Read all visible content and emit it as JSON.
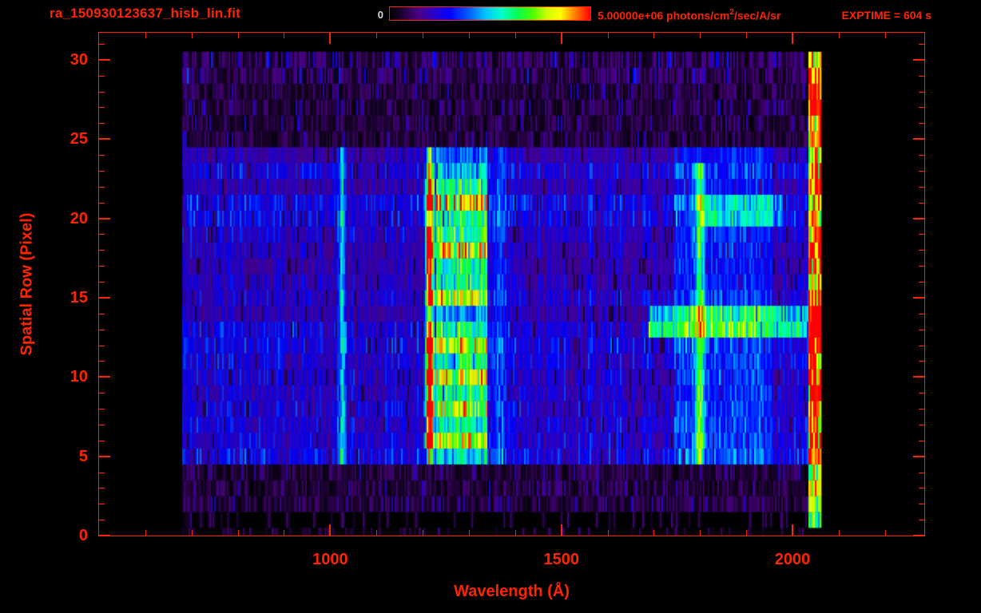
{
  "header": {
    "title": "ra_150930123637_hisb_lin.fit",
    "exptime": "EXPTIME = 604 s"
  },
  "colorbar": {
    "min_label": "0",
    "max_label_pre": "5.00000e+06 photons/cm",
    "max_label_sup": "2",
    "max_label_post": "/sec/A/sr",
    "min_value": 0,
    "max_value": 5000000
  },
  "axes": {
    "xlabel": "Wavelength (Å)",
    "ylabel": "Spatial Row (Pixel)",
    "x": {
      "min": 500,
      "max": 2285,
      "major_ticks": [
        1000,
        1500,
        2000
      ],
      "minor_step": 100
    },
    "y": {
      "min": 0,
      "max": 31.7,
      "major_ticks": [
        0,
        5,
        10,
        15,
        20,
        25,
        30
      ],
      "minor_step": 1
    }
  },
  "colors": {
    "background": "#000000",
    "axis": "#ff2400",
    "colorbar_min_label": "#d8d8d8",
    "colormap": [
      [
        0.0,
        "#000000"
      ],
      [
        0.06,
        "#1c0032"
      ],
      [
        0.14,
        "#4b0082"
      ],
      [
        0.22,
        "#2800c8"
      ],
      [
        0.3,
        "#0000ff"
      ],
      [
        0.4,
        "#0064ff"
      ],
      [
        0.48,
        "#00c8ff"
      ],
      [
        0.56,
        "#00ffc8"
      ],
      [
        0.63,
        "#00ff5a"
      ],
      [
        0.71,
        "#46ff00"
      ],
      [
        0.78,
        "#c8ff00"
      ],
      [
        0.85,
        "#ffff00"
      ],
      [
        0.91,
        "#ff9600"
      ],
      [
        1.0,
        "#ff0000"
      ]
    ]
  },
  "chart_data": {
    "type": "heatmap",
    "title": "ra_150930123637_hisb_lin.fit",
    "xlabel": "Wavelength (Å)",
    "ylabel": "Spatial Row (Pixel)",
    "xlim": [
      500,
      2285
    ],
    "ylim": [
      0,
      31.7
    ],
    "x_major_ticks": [
      1000,
      1500,
      2000
    ],
    "y_major_ticks": [
      0,
      5,
      10,
      15,
      20,
      25,
      30
    ],
    "colorbar_range": [
      0,
      5000000
    ],
    "colorbar_units": "photons/cm2/sec/A/sr",
    "exposure_time_s": 604,
    "x_range_A": [
      680,
      2062
    ],
    "row_range": [
      0,
      30
    ],
    "slit_rows": [
      5,
      24
    ],
    "ladder_rows": [
      6,
      8,
      10,
      12,
      15,
      18,
      21
    ],
    "features": [
      {
        "name": "faint emission line ~1025 A",
        "wavelength": 1025,
        "sigma": 5,
        "amplitude": 0.3,
        "rows": [
          5,
          24
        ]
      },
      {
        "name": "strong Lyman-alpha emission line 1216 A",
        "wavelength": 1216,
        "sigma": 6,
        "amplitude": 0.78,
        "rows": [
          5,
          24
        ],
        "ladder": true
      },
      {
        "name": "bright ladder band 1228-1340 A",
        "range": [
          1228,
          1340
        ],
        "amplitude": 0.3,
        "rows": [
          5,
          24
        ],
        "ladder": true
      },
      {
        "name": "faint band ~1365 A",
        "wavelength": 1365,
        "sigma": 12,
        "amplitude": 0.14,
        "rows": [
          5,
          24
        ]
      },
      {
        "name": "emission line ~1800 A",
        "wavelength": 1800,
        "sigma": 7,
        "amplitude": 0.34,
        "rows": [
          5,
          23
        ]
      },
      {
        "name": "mild brightening 1745-1960 A",
        "range": [
          1745,
          1960
        ],
        "amplitude": 0.1,
        "rows": [
          5,
          24
        ]
      },
      {
        "name": "detector edge glow 2035-2062 A",
        "range": [
          2035,
          2062
        ],
        "amplitude": 0.85,
        "rows": [
          1,
          30
        ],
        "edge": true
      }
    ],
    "streaks": [
      {
        "name": "bright horizontal streak at row ~13",
        "rows": [
          12.5,
          14.3
        ],
        "range": [
          1690,
          2062
        ],
        "amplitude": 0.32
      },
      {
        "name": "faint streak rows ~20-21",
        "rows": [
          19.3,
          21.3
        ],
        "range": [
          1800,
          1980
        ],
        "amplitude": 0.16
      }
    ],
    "background": {
      "slit_level": 0.2,
      "off_slit_level": 0.07,
      "description": "Noisy blue background across illuminated slit rows 5-24 with vertical striping; sparse purple speckle noise on rows 0-4 and 25-30; black outside detector coverage 680-2062 A."
    }
  }
}
